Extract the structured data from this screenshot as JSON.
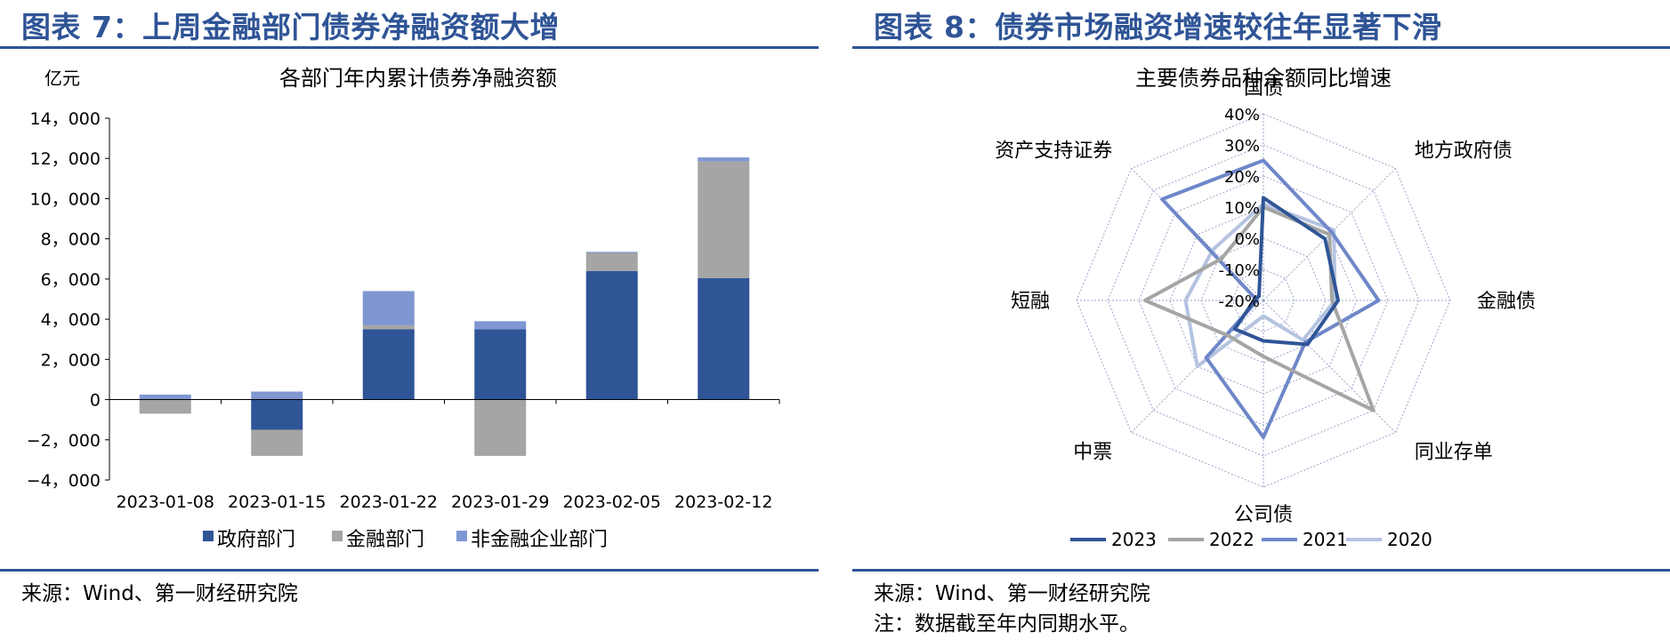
{
  "left": {
    "figure_title": "图表 7：上周金融部门债券净融资额大增",
    "source": "来源：Wind、第一财经研究院"
  },
  "right": {
    "figure_title": "图表 8：债券市场融资增速较往年显著下滑",
    "source": "来源：Wind、第一财经研究院",
    "note": "注：数据截至年内同期水平。"
  },
  "chart_data": [
    {
      "type": "bar",
      "stacked": true,
      "title": "各部门年内累计债券净融资额",
      "ylabel": "亿元",
      "ylim": [
        -4000,
        14000
      ],
      "yticks": [
        -4000,
        -2000,
        0,
        2000,
        4000,
        6000,
        8000,
        10000,
        12000,
        14000
      ],
      "ytick_labels": [
        "−4，000",
        "−2，000",
        "0",
        "2，000",
        "4，000",
        "6，000",
        "8，000",
        "10，000",
        "12，000",
        "14，000"
      ],
      "categories": [
        "2023-01-08",
        "2023-01-15",
        "2023-01-22",
        "2023-01-29",
        "2023-02-05",
        "2023-02-12"
      ],
      "series": [
        {
          "name": "政府部门",
          "color": "#2f5597",
          "values": [
            0,
            -1500,
            3500,
            3500,
            6400,
            6050
          ]
        },
        {
          "name": "金融部门",
          "color": "#a5a5a5",
          "values": [
            -700,
            -1300,
            200,
            -2800,
            900,
            5800
          ]
        },
        {
          "name": "非金融企业部门",
          "color": "#7f96d1",
          "values": [
            250,
            400,
            1700,
            400,
            50,
            200
          ]
        }
      ],
      "legend_position": "bottom",
      "grid": false
    },
    {
      "type": "radar",
      "title": "主要债券品种余额同比增速",
      "axes": [
        "国债",
        "地方政府债",
        "金融债",
        "同业存单",
        "公司债",
        "中票",
        "短融",
        "资产支持证券"
      ],
      "rlim": [
        -20,
        40
      ],
      "rticks": [
        40,
        30,
        20,
        10,
        0,
        -10,
        -20
      ],
      "rtick_labels": [
        "40%",
        "30%",
        "20%",
        "10%",
        "0%",
        "-10%",
        "-20%"
      ],
      "series": [
        {
          "name": "2023",
          "color": "#2f5597",
          "values": [
            13,
            8,
            4,
            0,
            -7,
            -7,
            -17,
            -18
          ]
        },
        {
          "name": "2022",
          "color": "#a5a5a5",
          "values": [
            10,
            10,
            2,
            30,
            -2,
            -4,
            18,
            -1
          ]
        },
        {
          "name": "2021",
          "color": "#6f87c9",
          "values": [
            25,
            11,
            17,
            -1,
            24,
            6,
            -18,
            26
          ]
        },
        {
          "name": "2020",
          "color": "#b4c3e1",
          "values": [
            11,
            12,
            3,
            -2,
            -15,
            10,
            5,
            3
          ]
        }
      ],
      "legend_position": "bottom"
    }
  ]
}
